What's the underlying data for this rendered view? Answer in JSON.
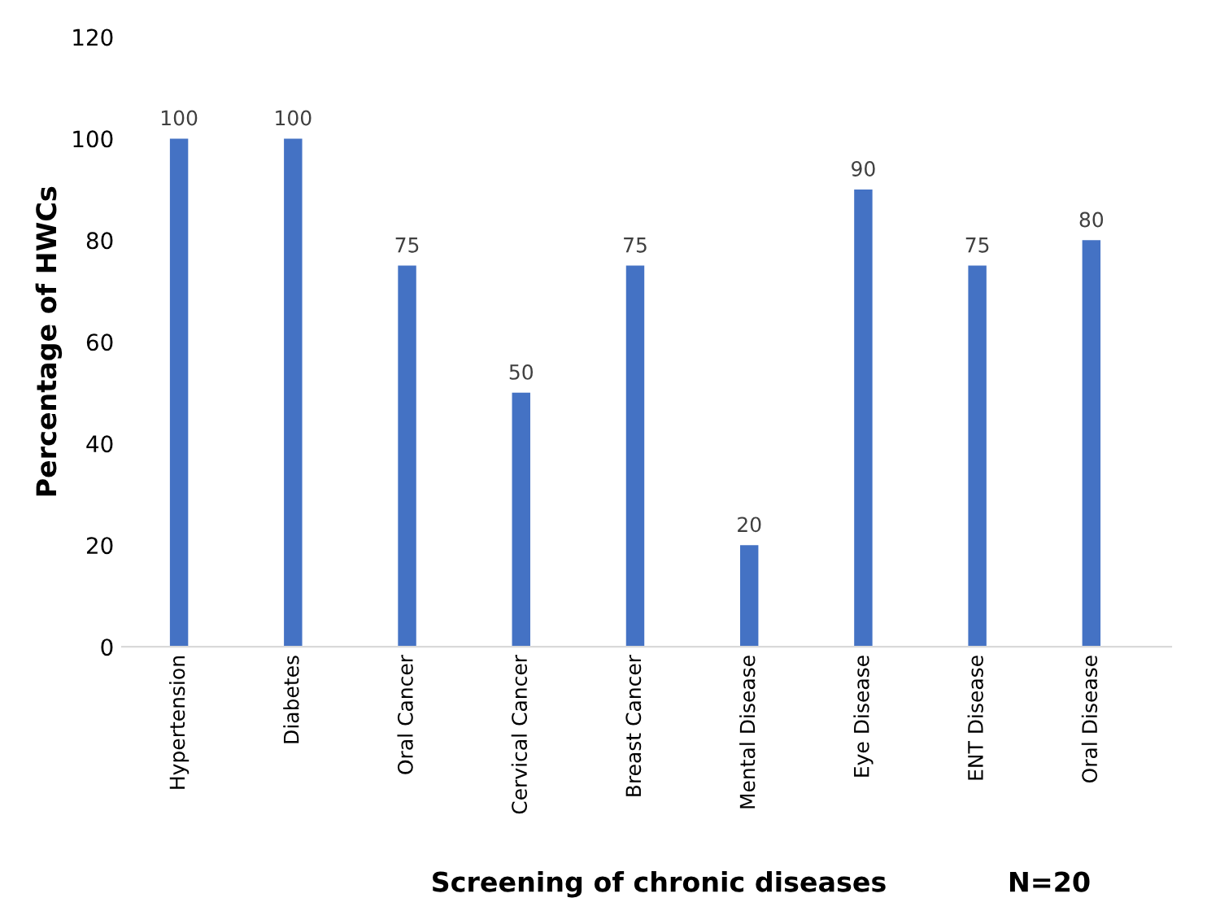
{
  "chart_data": {
    "type": "bar",
    "xlabel": "Screening of chronic diseases",
    "ylabel": "Percentage of HWCs",
    "categories": [
      "Hypertension",
      "Diabetes",
      "Oral Cancer",
      "Cervical Cancer",
      "Breast Cancer",
      "Mental Disease",
      "Eye Disease",
      "ENT Disease",
      "Oral Disease"
    ],
    "values": [
      100,
      100,
      75,
      50,
      75,
      20,
      90,
      75,
      80
    ],
    "color": "#4472c4",
    "ylim": [
      0,
      120
    ],
    "yticks": [
      0,
      20,
      40,
      60,
      80,
      100,
      120
    ],
    "grid": false,
    "data_labels": true,
    "annotations": [
      "N=20"
    ]
  }
}
